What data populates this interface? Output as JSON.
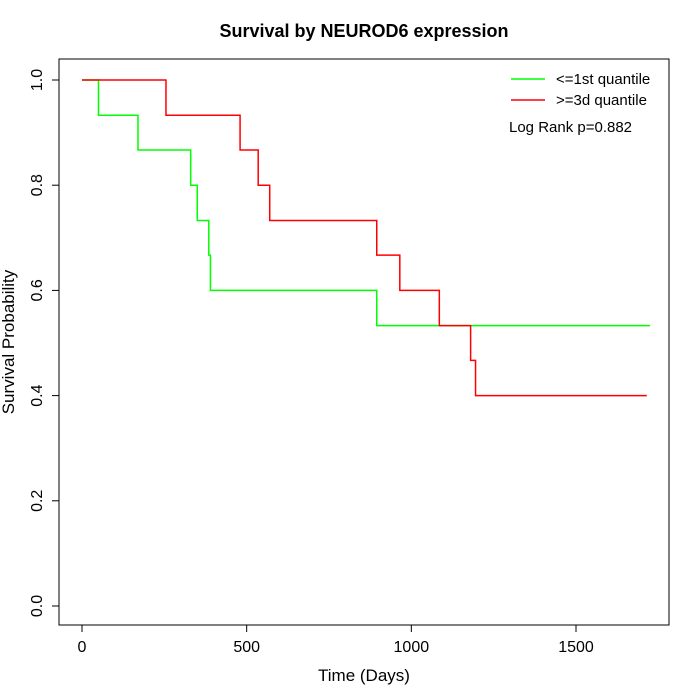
{
  "chart_data": {
    "type": "line",
    "step": true,
    "title": "Survival by NEUROD6 expression",
    "xlabel": "Time (Days)",
    "ylabel": "Survival Probability",
    "xlim": [
      0,
      1800
    ],
    "ylim": [
      0,
      1.0
    ],
    "x_ticks": [
      "0",
      "500",
      "1000",
      "1500"
    ],
    "y_ticks": [
      "0.0",
      "0.2",
      "0.4",
      "0.6",
      "0.8",
      "1.0"
    ],
    "grid": false,
    "legend_position": "top-right",
    "annotation": "Log Rank p=0.882",
    "series": [
      {
        "name": "<=1st quantile",
        "color": "#00ff00",
        "x": [
          0,
          50,
          170,
          330,
          350,
          385,
          390,
          895,
          1725
        ],
        "y": [
          1.0,
          0.933,
          0.867,
          0.8,
          0.733,
          0.667,
          0.6,
          0.533,
          0.533
        ]
      },
      {
        "name": ">=3d quantile",
        "color": "#ff0000",
        "x": [
          0,
          255,
          480,
          535,
          570,
          895,
          965,
          1085,
          1180,
          1195,
          1715
        ],
        "y": [
          1.0,
          0.933,
          0.867,
          0.8,
          0.733,
          0.667,
          0.6,
          0.533,
          0.467,
          0.4,
          0.4
        ]
      }
    ]
  }
}
